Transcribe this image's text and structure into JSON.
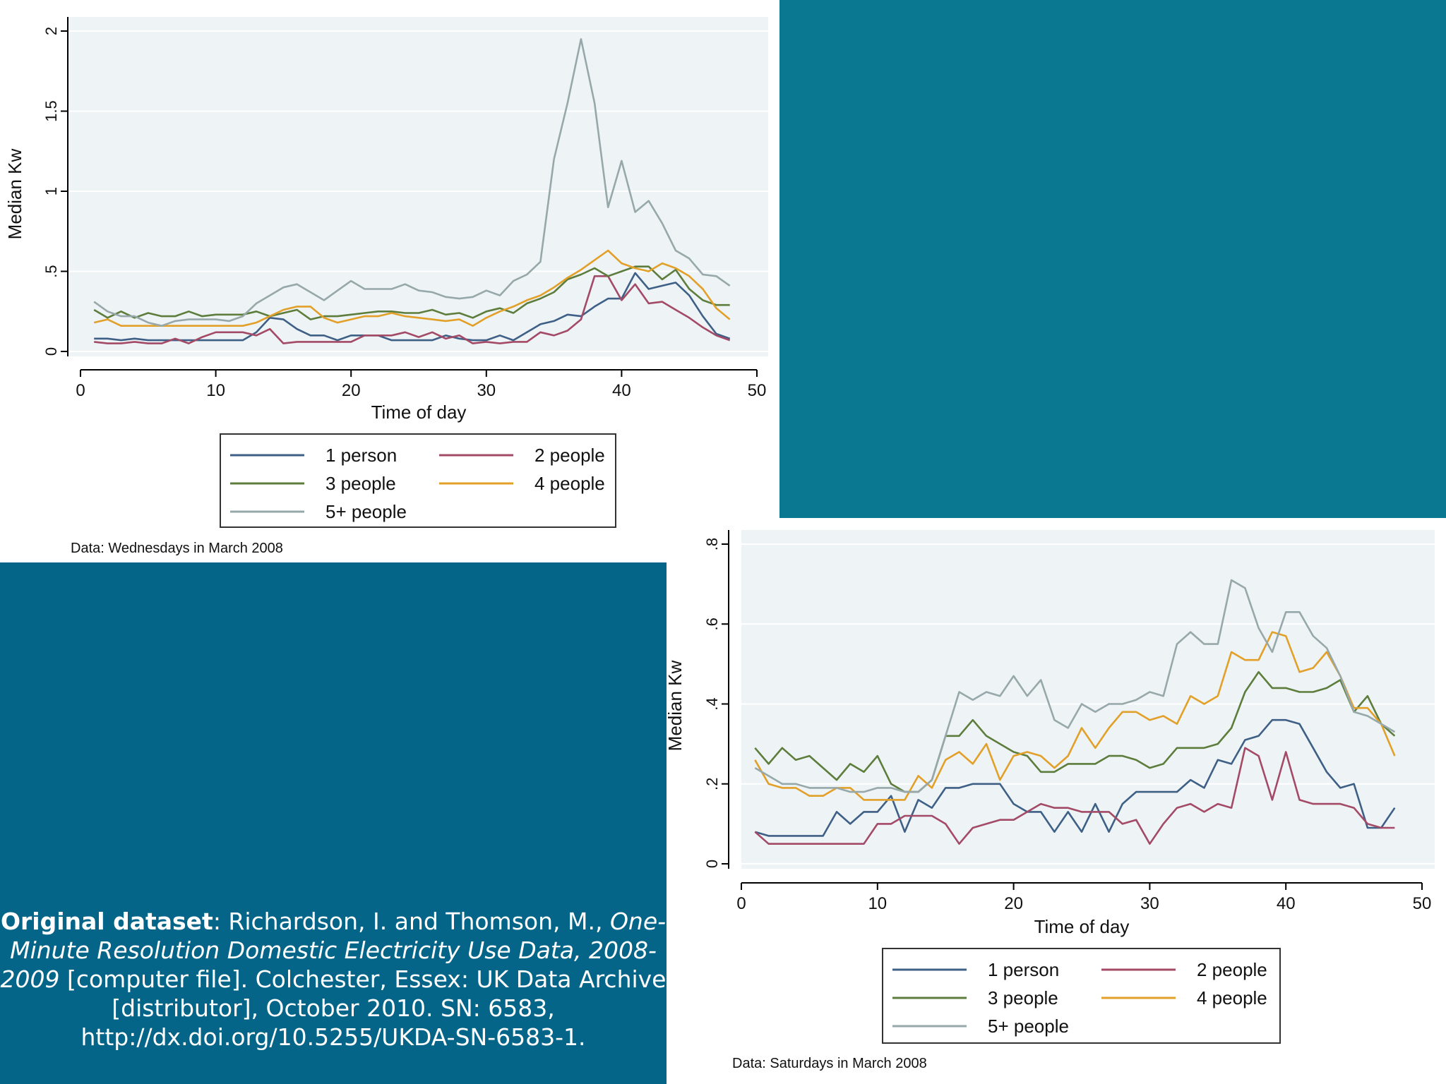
{
  "colors": {
    "series": [
      "#3e5f86",
      "#a34a66",
      "#5d7d3c",
      "#e2a029",
      "#97a8aa"
    ],
    "plot_background": "#eef3f6",
    "gridline": "#ffffff",
    "slide_background": "#08707f"
  },
  "chart_data": [
    {
      "type": "line",
      "xlabel": "Time of day",
      "ylabel": "Median Kw",
      "xticks": [
        "0",
        "10",
        "20",
        "30",
        "40",
        "50"
      ],
      "yticks": [
        "0",
        ".5",
        "1",
        "1.5",
        "2"
      ],
      "xlim": [
        0,
        50
      ],
      "ylim": [
        0,
        2
      ],
      "note": "Data: Wednesdays in March 2008",
      "legend_position": "bottom",
      "x": [
        1,
        2,
        3,
        4,
        5,
        6,
        7,
        8,
        9,
        10,
        11,
        12,
        13,
        14,
        15,
        16,
        17,
        18,
        19,
        20,
        21,
        22,
        23,
        24,
        25,
        26,
        27,
        28,
        29,
        30,
        31,
        32,
        33,
        34,
        35,
        36,
        37,
        38,
        39,
        40,
        41,
        42,
        43,
        44,
        45,
        46,
        47,
        48
      ],
      "series": [
        {
          "name": "1 person",
          "values": [
            0.08,
            0.08,
            0.07,
            0.08,
            0.07,
            0.07,
            0.07,
            0.07,
            0.07,
            0.07,
            0.07,
            0.07,
            0.12,
            0.21,
            0.2,
            0.14,
            0.1,
            0.1,
            0.07,
            0.1,
            0.1,
            0.1,
            0.07,
            0.07,
            0.07,
            0.07,
            0.1,
            0.08,
            0.07,
            0.07,
            0.1,
            0.07,
            0.12,
            0.17,
            0.19,
            0.23,
            0.22,
            0.28,
            0.33,
            0.33,
            0.49,
            0.39,
            0.41,
            0.43,
            0.35,
            0.22,
            0.11,
            0.08
          ]
        },
        {
          "name": "2 people",
          "values": [
            0.06,
            0.05,
            0.05,
            0.06,
            0.05,
            0.05,
            0.08,
            0.05,
            0.09,
            0.12,
            0.12,
            0.12,
            0.1,
            0.14,
            0.05,
            0.06,
            0.06,
            0.06,
            0.06,
            0.06,
            0.1,
            0.1,
            0.1,
            0.12,
            0.09,
            0.12,
            0.08,
            0.1,
            0.05,
            0.06,
            0.05,
            0.06,
            0.06,
            0.12,
            0.1,
            0.13,
            0.2,
            0.47,
            0.47,
            0.32,
            0.42,
            0.3,
            0.31,
            0.26,
            0.21,
            0.15,
            0.1,
            0.07
          ]
        },
        {
          "name": "3 people",
          "values": [
            0.26,
            0.21,
            0.25,
            0.21,
            0.24,
            0.22,
            0.22,
            0.25,
            0.22,
            0.23,
            0.23,
            0.23,
            0.25,
            0.22,
            0.24,
            0.26,
            0.2,
            0.22,
            0.22,
            0.23,
            0.24,
            0.25,
            0.25,
            0.24,
            0.24,
            0.26,
            0.23,
            0.24,
            0.21,
            0.25,
            0.27,
            0.24,
            0.3,
            0.33,
            0.37,
            0.45,
            0.48,
            0.52,
            0.47,
            0.5,
            0.53,
            0.53,
            0.45,
            0.51,
            0.39,
            0.32,
            0.29,
            0.29
          ]
        },
        {
          "name": "4 people",
          "values": [
            0.18,
            0.2,
            0.16,
            0.16,
            0.16,
            0.16,
            0.16,
            0.16,
            0.16,
            0.16,
            0.16,
            0.16,
            0.18,
            0.22,
            0.26,
            0.28,
            0.28,
            0.21,
            0.18,
            0.2,
            0.22,
            0.22,
            0.24,
            0.22,
            0.21,
            0.2,
            0.19,
            0.2,
            0.16,
            0.21,
            0.25,
            0.28,
            0.32,
            0.35,
            0.4,
            0.46,
            0.51,
            0.57,
            0.63,
            0.55,
            0.52,
            0.5,
            0.55,
            0.52,
            0.47,
            0.39,
            0.27,
            0.2
          ]
        },
        {
          "name": "5+ people",
          "values": [
            0.31,
            0.25,
            0.22,
            0.22,
            0.18,
            0.16,
            0.19,
            0.2,
            0.2,
            0.2,
            0.19,
            0.22,
            0.3,
            0.35,
            0.4,
            0.42,
            0.37,
            0.32,
            0.38,
            0.44,
            0.39,
            0.39,
            0.39,
            0.42,
            0.38,
            0.37,
            0.34,
            0.33,
            0.34,
            0.38,
            0.35,
            0.44,
            0.48,
            0.56,
            1.2,
            1.55,
            1.95,
            1.55,
            0.9,
            1.19,
            0.87,
            0.94,
            0.8,
            0.63,
            0.58,
            0.48,
            0.47,
            0.41
          ]
        }
      ]
    },
    {
      "type": "line",
      "xlabel": "Time of day",
      "ylabel": "Median Kw",
      "xticks": [
        "0",
        "10",
        "20",
        "30",
        "40",
        "50"
      ],
      "yticks": [
        "0",
        ".2",
        ".4",
        ".6",
        ".8"
      ],
      "xlim": [
        0,
        50
      ],
      "ylim": [
        0,
        0.8
      ],
      "note": "Data: Saturdays in March 2008",
      "legend_position": "bottom",
      "x": [
        1,
        2,
        3,
        4,
        5,
        6,
        7,
        8,
        9,
        10,
        11,
        12,
        13,
        14,
        15,
        16,
        17,
        18,
        19,
        20,
        21,
        22,
        23,
        24,
        25,
        26,
        27,
        28,
        29,
        30,
        31,
        32,
        33,
        34,
        35,
        36,
        37,
        38,
        39,
        40,
        41,
        42,
        43,
        44,
        45,
        46,
        47,
        48
      ],
      "series": [
        {
          "name": "1 person",
          "values": [
            0.08,
            0.07,
            0.07,
            0.07,
            0.07,
            0.07,
            0.13,
            0.1,
            0.13,
            0.13,
            0.17,
            0.08,
            0.16,
            0.14,
            0.19,
            0.19,
            0.2,
            0.2,
            0.2,
            0.15,
            0.13,
            0.13,
            0.08,
            0.13,
            0.08,
            0.15,
            0.08,
            0.15,
            0.18,
            0.18,
            0.18,
            0.18,
            0.21,
            0.19,
            0.26,
            0.25,
            0.31,
            0.32,
            0.36,
            0.36,
            0.35,
            0.29,
            0.23,
            0.19,
            0.2,
            0.09,
            0.09,
            0.14
          ]
        },
        {
          "name": "2 people",
          "values": [
            0.08,
            0.05,
            0.05,
            0.05,
            0.05,
            0.05,
            0.05,
            0.05,
            0.05,
            0.1,
            0.1,
            0.12,
            0.12,
            0.12,
            0.1,
            0.05,
            0.09,
            0.1,
            0.11,
            0.11,
            0.13,
            0.15,
            0.14,
            0.14,
            0.13,
            0.13,
            0.13,
            0.1,
            0.11,
            0.05,
            0.1,
            0.14,
            0.15,
            0.13,
            0.15,
            0.14,
            0.29,
            0.27,
            0.16,
            0.28,
            0.16,
            0.15,
            0.15,
            0.15,
            0.14,
            0.1,
            0.09,
            0.09
          ]
        },
        {
          "name": "3 people",
          "values": [
            0.29,
            0.25,
            0.29,
            0.26,
            0.27,
            0.24,
            0.21,
            0.25,
            0.23,
            0.27,
            0.2,
            0.18,
            0.18,
            0.21,
            0.32,
            0.32,
            0.36,
            0.32,
            0.3,
            0.28,
            0.27,
            0.23,
            0.23,
            0.25,
            0.25,
            0.25,
            0.27,
            0.27,
            0.26,
            0.24,
            0.25,
            0.29,
            0.29,
            0.29,
            0.3,
            0.34,
            0.43,
            0.48,
            0.44,
            0.44,
            0.43,
            0.43,
            0.44,
            0.46,
            0.38,
            0.42,
            0.35,
            0.32
          ]
        },
        {
          "name": "4 people",
          "values": [
            0.26,
            0.2,
            0.19,
            0.19,
            0.17,
            0.17,
            0.19,
            0.19,
            0.16,
            0.16,
            0.16,
            0.16,
            0.22,
            0.19,
            0.26,
            0.28,
            0.25,
            0.3,
            0.21,
            0.27,
            0.28,
            0.27,
            0.24,
            0.27,
            0.34,
            0.29,
            0.34,
            0.38,
            0.38,
            0.36,
            0.37,
            0.35,
            0.42,
            0.4,
            0.42,
            0.53,
            0.51,
            0.51,
            0.58,
            0.57,
            0.48,
            0.49,
            0.53,
            0.47,
            0.39,
            0.39,
            0.35,
            0.27
          ]
        },
        {
          "name": "5+ people",
          "values": [
            0.24,
            0.22,
            0.2,
            0.2,
            0.19,
            0.19,
            0.19,
            0.18,
            0.18,
            0.19,
            0.19,
            0.18,
            0.18,
            0.21,
            0.32,
            0.43,
            0.41,
            0.43,
            0.42,
            0.47,
            0.42,
            0.46,
            0.36,
            0.34,
            0.4,
            0.38,
            0.4,
            0.4,
            0.41,
            0.43,
            0.42,
            0.55,
            0.58,
            0.55,
            0.55,
            0.71,
            0.69,
            0.59,
            0.53,
            0.63,
            0.63,
            0.57,
            0.54,
            0.47,
            0.38,
            0.37,
            0.35,
            0.33
          ]
        }
      ]
    }
  ],
  "caption": {
    "bold": "Original dataset",
    "text1": ": Richardson, I. and Thomson, M., ",
    "italic": "One-Minute Resolution Domestic Electricity Use Data, 2008-2009",
    "text2": " [computer file]. Colchester, Essex: UK Data Archive [distributor], October 2010. SN: 6583, http://dx.doi.org/10.5255/UKDA-SN-6583-1."
  }
}
